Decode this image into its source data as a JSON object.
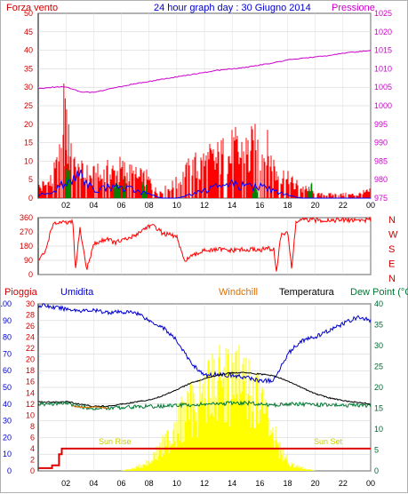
{
  "header": {
    "top_left": "Forza vento",
    "title": "24 hour graph day : 30 Giugno 2014",
    "top_right": "Pressione"
  },
  "bottom_header": {
    "pioggia": "Pioggia",
    "umidita": "Umidita",
    "windchill": "Windchill",
    "temperatura": "Temperatura",
    "dewpoint": "Dew Point (°C"
  },
  "annotations": {
    "sunrise": "Sun Rise",
    "sunset": "Sun Set"
  },
  "colors": {
    "wind": "#ff0000",
    "gust": "#0000ff",
    "wind_green": "#008000",
    "pressure": "#cc00cc",
    "direction": "#ff0000",
    "humidity": "#0000cc",
    "temperature": "#000000",
    "dewpoint": "#007733",
    "windchill": "#e07000",
    "rain": "#dd0000",
    "solar": "#ffff00",
    "axis_left": "#cc0000",
    "axis_right": "#cc00cc",
    "axis_blue": "#0000cc"
  },
  "chart_data": [
    {
      "type": "line",
      "name": "wind_pressure",
      "x_ticks": [
        "02",
        "04",
        "06",
        "08",
        "10",
        "12",
        "14",
        "16",
        "18",
        "20",
        "22",
        "00"
      ],
      "y_left_ticks": [
        "0",
        "5",
        "10",
        "15",
        "20",
        "25",
        "30",
        "35",
        "40",
        "45",
        "50"
      ],
      "y_left_range": [
        0,
        50
      ],
      "y_right_ticks": [
        "975",
        "980",
        "985",
        "990",
        "995",
        "1000",
        "1005",
        "1010",
        "1015",
        "1020",
        "1025"
      ],
      "y_right_range": [
        975,
        1025
      ],
      "pressure": {
        "x": [
          0,
          1,
          2,
          3,
          4,
          5,
          6,
          7,
          8,
          9,
          10,
          11,
          12,
          13,
          14,
          15,
          16,
          17,
          18,
          19,
          20,
          21,
          22,
          23,
          24
        ],
        "values": [
          1004.6,
          1005.0,
          1005.2,
          1003.8,
          1003.6,
          1004.4,
          1005.2,
          1006.0,
          1006.6,
          1007.2,
          1007.8,
          1008.4,
          1009.0,
          1009.6,
          1010.0,
          1010.4,
          1011.0,
          1011.6,
          1012.4,
          1012.8,
          1013.2,
          1013.6,
          1014.2,
          1014.6,
          1015.0
        ]
      },
      "wind_profile": {
        "x": [
          0,
          1,
          1.5,
          2,
          2.5,
          3,
          4,
          5,
          6,
          7,
          8,
          8.5,
          9,
          10,
          11,
          12,
          13,
          14,
          15,
          16,
          16.5,
          17,
          17.5,
          18,
          19,
          20,
          21,
          22,
          23,
          24
        ],
        "values": [
          3,
          5,
          10,
          14,
          9,
          7,
          6,
          7,
          8,
          6,
          5,
          2,
          2,
          4,
          8,
          10,
          11,
          13,
          13,
          14,
          13,
          9,
          7,
          5,
          3,
          1,
          1,
          1,
          1,
          2
        ]
      },
      "gust_profile": {
        "x": [
          0,
          1,
          2,
          3,
          4,
          5,
          6,
          7,
          8,
          9,
          10,
          11,
          12,
          13,
          14,
          15,
          16,
          17,
          18,
          19,
          20,
          21,
          22,
          23,
          24
        ],
        "values": [
          1,
          1,
          5,
          6,
          2,
          3,
          3,
          2,
          1,
          0,
          0,
          1,
          2,
          3,
          4,
          3,
          3,
          2,
          1,
          0,
          0,
          0,
          0,
          0,
          0
        ]
      }
    },
    {
      "type": "line",
      "name": "wind_direction",
      "y_left_ticks": [
        "0",
        "90",
        "180",
        "270",
        "360"
      ],
      "y_left_range": [
        0,
        360
      ],
      "y_right_labels": [
        "N",
        "W",
        "S",
        "E",
        "N"
      ],
      "x": [
        0,
        0.5,
        1,
        1.5,
        2,
        2.5,
        2.7,
        3,
        3.5,
        4,
        4.5,
        5,
        5.5,
        6,
        6.5,
        7,
        7.5,
        8,
        8.5,
        9,
        9.5,
        10,
        10.5,
        11,
        11.5,
        12,
        12.5,
        13,
        13.5,
        14,
        14.5,
        15,
        15.5,
        16,
        16.5,
        17,
        17.2,
        17.5,
        18,
        18.3,
        18.6,
        19,
        19.5,
        20,
        21,
        22,
        23,
        24
      ],
      "values": [
        90,
        140,
        310,
        330,
        325,
        330,
        20,
        300,
        30,
        190,
        210,
        230,
        200,
        215,
        225,
        250,
        280,
        310,
        300,
        260,
        250,
        240,
        90,
        110,
        130,
        160,
        150,
        160,
        155,
        150,
        160,
        150,
        160,
        155,
        165,
        160,
        20,
        240,
        280,
        30,
        330,
        345,
        345,
        345,
        345,
        345,
        345,
        345
      ]
    },
    {
      "type": "line",
      "name": "temp_humidity_rain",
      "y_left_humidity_ticks": [
        "0",
        "10",
        "20",
        "30",
        "40",
        "50",
        "60",
        "70",
        "80",
        "90",
        "100"
      ],
      "y_left_humidity_range": [
        0,
        100
      ],
      "y_left_rain_ticks": [
        "0",
        "2",
        "4",
        "6",
        "8",
        "10",
        "12",
        "14",
        "16",
        "18",
        "20",
        "22",
        "24",
        "26",
        "28",
        "30"
      ],
      "y_left_rain_range": [
        0,
        30
      ],
      "y_right_temp_ticks": [
        "0",
        "5",
        "10",
        "15",
        "20",
        "25",
        "30",
        "35",
        "40"
      ],
      "y_right_temp_range": [
        0,
        40
      ],
      "humidity": {
        "x": [
          0,
          0.5,
          1,
          2,
          3,
          4,
          5,
          6,
          7,
          7.5,
          8,
          9,
          10,
          11,
          12,
          13,
          14,
          15,
          16,
          17,
          17.5,
          18,
          19,
          20,
          21,
          22,
          23,
          24
        ],
        "values": [
          99,
          99,
          98,
          97,
          96,
          96,
          95,
          95,
          95,
          93,
          90,
          86,
          78,
          65,
          57,
          58,
          57,
          56,
          54,
          54,
          62,
          70,
          78,
          80,
          84,
          88,
          92,
          90
        ]
      },
      "temperature": {
        "x": [
          0,
          1,
          2,
          3,
          4,
          5,
          6,
          7,
          8,
          9,
          10,
          11,
          12,
          13,
          14,
          15,
          16,
          17,
          18,
          19,
          20,
          21,
          22,
          23,
          24
        ],
        "values": [
          16.5,
          16.5,
          16.6,
          16.0,
          15.5,
          15.5,
          16,
          16.5,
          17,
          18,
          19.5,
          21,
          22,
          23,
          23.5,
          23.5,
          23.2,
          22.8,
          21.5,
          20,
          18.5,
          17.5,
          16.8,
          16.5,
          16.0
        ]
      },
      "dewpoint": {
        "x": [
          0,
          1,
          2,
          3,
          4,
          5,
          6,
          7,
          8,
          9,
          10,
          11,
          12,
          13,
          14,
          15,
          16,
          17,
          18,
          19,
          20,
          21,
          22,
          23,
          24
        ],
        "values": [
          16,
          16,
          16.2,
          15.4,
          15,
          15,
          15.2,
          15.4,
          15.4,
          15.5,
          15.7,
          15.8,
          16,
          16,
          16.2,
          16.3,
          16,
          15.8,
          16,
          16,
          15.8,
          15.8,
          15.7,
          15.7,
          15.6
        ]
      },
      "windchill": {
        "x": [
          2.5,
          3,
          3.5,
          4,
          4.5,
          5
        ],
        "values": [
          15.5,
          15.3,
          15.2,
          15.3,
          15.2,
          15.1
        ]
      },
      "rain": {
        "x": [
          0,
          1,
          1.5,
          1.7,
          24
        ],
        "values": [
          0.5,
          1,
          3,
          4,
          4
        ]
      },
      "solar_envelope": {
        "x": [
          0,
          6,
          7,
          8,
          9,
          10,
          11,
          12,
          13,
          14,
          15,
          16,
          17,
          17.5,
          18,
          19,
          20,
          21,
          24
        ],
        "values": [
          0,
          0,
          1,
          3,
          8,
          15,
          20,
          26,
          28,
          30,
          27,
          22,
          12,
          6,
          3,
          1,
          0,
          0,
          0
        ]
      }
    }
  ]
}
